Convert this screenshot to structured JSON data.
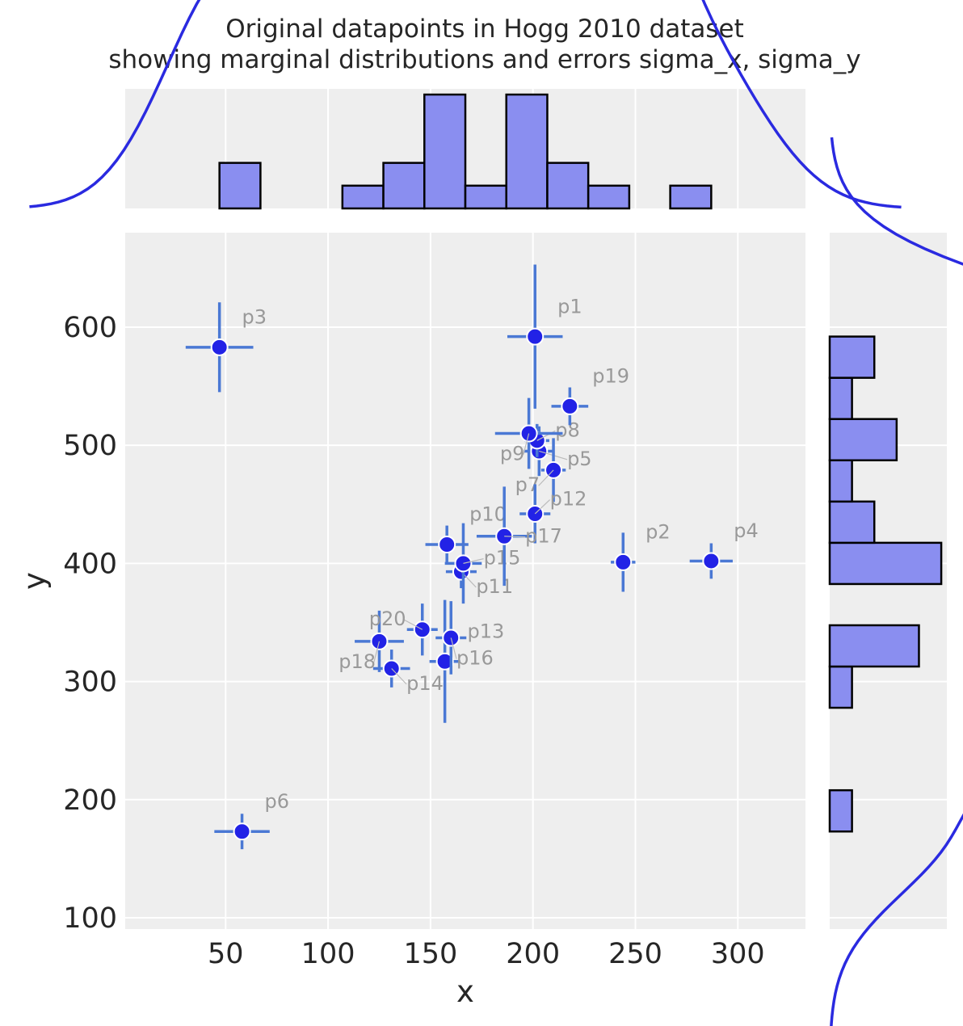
{
  "chart_data": {
    "type": "scatter",
    "title": [
      "Original datapoints in Hogg 2010 dataset",
      "showing marginal distributions and errors sigma_x, sigma_y"
    ],
    "xlabel": "x",
    "ylabel": "y",
    "xlim": [
      1,
      333
    ],
    "ylim": [
      90.4,
      680
    ],
    "xticks": [
      50,
      100,
      150,
      200,
      250,
      300
    ],
    "yticks": [
      100,
      200,
      300,
      400,
      500,
      600
    ],
    "grid": true,
    "points": [
      {
        "label": "p1",
        "x": 201,
        "y": 592,
        "sigma_x": 9,
        "sigma_y": 61
      },
      {
        "label": "p2",
        "x": 244,
        "y": 401,
        "sigma_x": 4,
        "sigma_y": 25
      },
      {
        "label": "p3",
        "x": 47,
        "y": 583,
        "sigma_x": 11,
        "sigma_y": 38
      },
      {
        "label": "p4",
        "x": 287,
        "y": 402,
        "sigma_x": 7,
        "sigma_y": 15
      },
      {
        "label": "p5",
        "x": 203,
        "y": 495,
        "sigma_x": 5,
        "sigma_y": 21
      },
      {
        "label": "p6",
        "x": 58,
        "y": 173,
        "sigma_x": 9,
        "sigma_y": 15
      },
      {
        "label": "p7",
        "x": 210,
        "y": 479,
        "sigma_x": 4,
        "sigma_y": 27
      },
      {
        "label": "p8",
        "x": 202,
        "y": 504,
        "sigma_x": 4,
        "sigma_y": 14
      },
      {
        "label": "p9",
        "x": 198,
        "y": 510,
        "sigma_x": 11,
        "sigma_y": 30
      },
      {
        "label": "p10",
        "x": 158,
        "y": 416,
        "sigma_x": 7,
        "sigma_y": 16
      },
      {
        "label": "p11",
        "x": 165,
        "y": 393,
        "sigma_x": 5,
        "sigma_y": 14
      },
      {
        "label": "p12",
        "x": 201,
        "y": 442,
        "sigma_x": 5,
        "sigma_y": 25
      },
      {
        "label": "p13",
        "x": 157,
        "y": 317,
        "sigma_x": 5,
        "sigma_y": 52
      },
      {
        "label": "p14",
        "x": 131,
        "y": 311,
        "sigma_x": 6,
        "sigma_y": 16
      },
      {
        "label": "p15",
        "x": 166,
        "y": 400,
        "sigma_x": 6,
        "sigma_y": 34
      },
      {
        "label": "p16",
        "x": 160,
        "y": 337,
        "sigma_x": 5,
        "sigma_y": 31
      },
      {
        "label": "p17",
        "x": 186,
        "y": 423,
        "sigma_x": 9,
        "sigma_y": 42
      },
      {
        "label": "p18",
        "x": 125,
        "y": 334,
        "sigma_x": 8,
        "sigma_y": 26
      },
      {
        "label": "p19",
        "x": 218,
        "y": 533,
        "sigma_x": 6,
        "sigma_y": 16
      },
      {
        "label": "p20",
        "x": 146,
        "y": 344,
        "sigma_x": 5,
        "sigma_y": 22
      }
    ],
    "x_histogram": {
      "bin_start": 47,
      "bin_width": 20,
      "counts": [
        2,
        0,
        0,
        1,
        2,
        5,
        1,
        5,
        2,
        1,
        0,
        1
      ],
      "ylim": [
        0,
        5.25
      ]
    },
    "y_histogram": {
      "bin_start": 173,
      "bin_width": 34.92,
      "counts": [
        1,
        0,
        0,
        1,
        4,
        0,
        5,
        2,
        1,
        3,
        1,
        2
      ],
      "xlim": [
        0,
        5.25
      ]
    },
    "colors": {
      "point": "#2222e6",
      "errorbar": "#4a78d4",
      "hist_fill": "#8a8ef0",
      "kde": "#2a2ae0",
      "background": "#eeeeee"
    }
  }
}
